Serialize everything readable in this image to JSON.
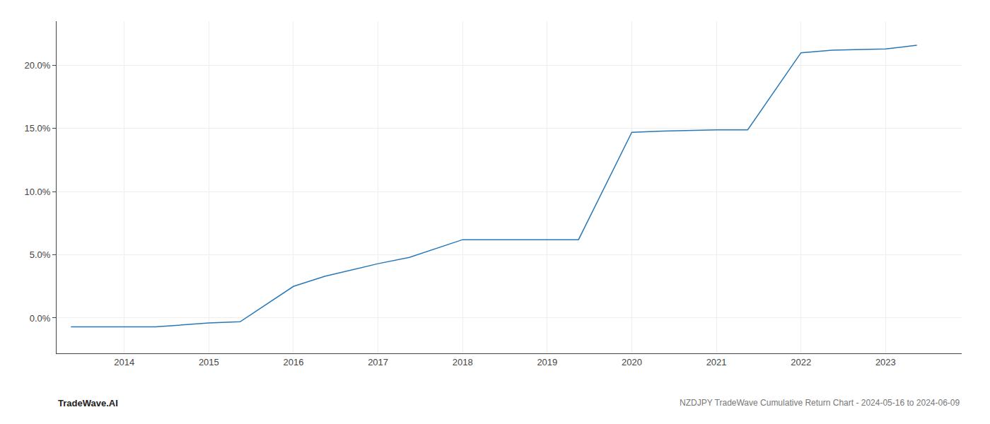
{
  "chart_data": {
    "type": "line",
    "x": [
      2013.37,
      2014.0,
      2014.37,
      2015.0,
      2015.37,
      2016.0,
      2016.37,
      2017.0,
      2017.37,
      2018.0,
      2018.37,
      2019.0,
      2019.37,
      2020.0,
      2020.37,
      2021.0,
      2021.37,
      2022.0,
      2022.37,
      2023.0,
      2023.37
    ],
    "values": [
      -0.007,
      -0.007,
      -0.007,
      -0.004,
      -0.003,
      0.025,
      0.033,
      0.043,
      0.048,
      0.062,
      0.062,
      0.062,
      0.062,
      0.147,
      0.148,
      0.149,
      0.149,
      0.21,
      0.212,
      0.213,
      0.216
    ],
    "color": "#2878b8",
    "xlim": [
      2013.2,
      2023.9
    ],
    "ylim": [
      -0.028,
      0.235
    ],
    "xticks": [
      2014,
      2015,
      2016,
      2017,
      2018,
      2019,
      2020,
      2021,
      2022,
      2023
    ],
    "yticks": [
      {
        "value": 0.0,
        "label": "0.0%"
      },
      {
        "value": 0.05,
        "label": "5.0%"
      },
      {
        "value": 0.1,
        "label": "10.0%"
      },
      {
        "value": 0.15,
        "label": "15.0%"
      },
      {
        "value": 0.2,
        "label": "20.0%"
      }
    ],
    "grid": true,
    "annotations": [
      "TradeWave.AI",
      "NZDJPY TradeWave Cumulative Return Chart - 2024-05-16 to 2024-06-09"
    ]
  }
}
